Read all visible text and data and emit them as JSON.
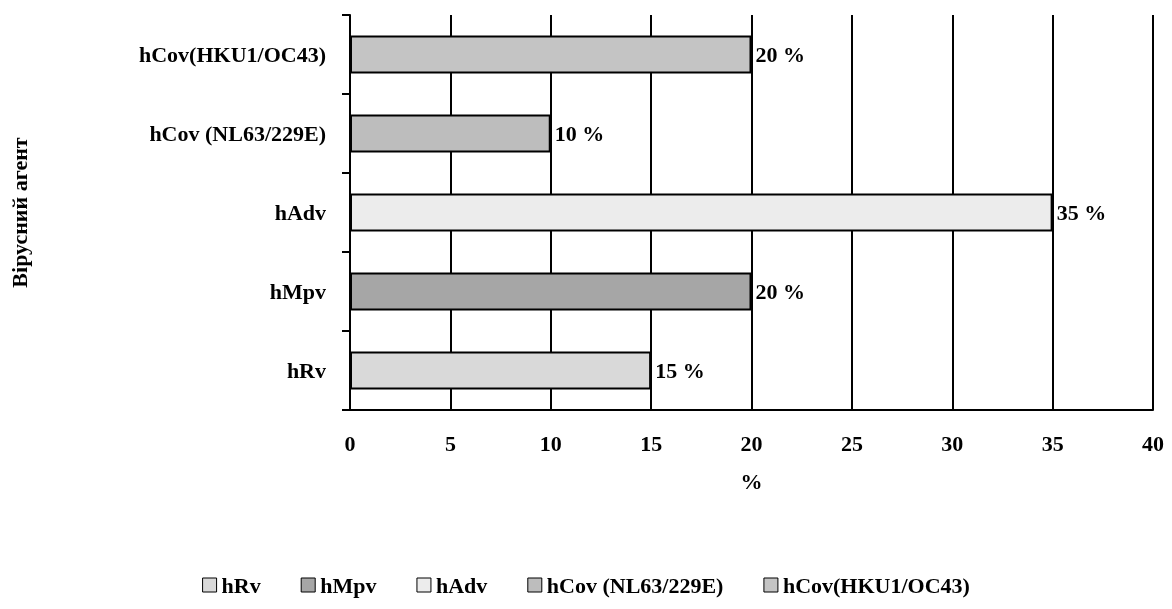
{
  "chart_data": {
    "type": "bar",
    "orientation": "horizontal",
    "ylabel": "Вірусний агент",
    "xlabel": "%",
    "categories": [
      "hCov(HKU1/OC43)",
      "hCov (NL63/229E)",
      "hAdv",
      "hMpv",
      "hRv"
    ],
    "series": [
      {
        "name": "hRv",
        "color": "#d9d9d9",
        "values": [
          null,
          null,
          null,
          null,
          15
        ],
        "value_labels": [
          null,
          null,
          null,
          null,
          "15 %"
        ]
      },
      {
        "name": "hMpv",
        "color": "#a6a6a6",
        "values": [
          null,
          null,
          null,
          20,
          null
        ],
        "value_labels": [
          null,
          null,
          null,
          "20 %",
          null
        ]
      },
      {
        "name": "hAdv",
        "color": "#ececec",
        "values": [
          null,
          null,
          35,
          null,
          null
        ],
        "value_labels": [
          null,
          null,
          "35 %",
          null,
          null
        ]
      },
      {
        "name": "hCov (NL63/229E)",
        "color": "#bdbdbd",
        "values": [
          null,
          10,
          null,
          null,
          null
        ],
        "value_labels": [
          null,
          "10 %",
          null,
          null,
          null
        ]
      },
      {
        "name": "hCov(HKU1/OC43)",
        "color": "#c4c4c4",
        "values": [
          20,
          null,
          null,
          null,
          null
        ],
        "value_labels": [
          "20 %",
          null,
          null,
          null,
          null
        ]
      }
    ],
    "xlim": [
      0,
      40
    ],
    "xticks": [
      0,
      5,
      10,
      15,
      20,
      25,
      30,
      35,
      40
    ],
    "grid": "x",
    "legend": "bottom"
  }
}
